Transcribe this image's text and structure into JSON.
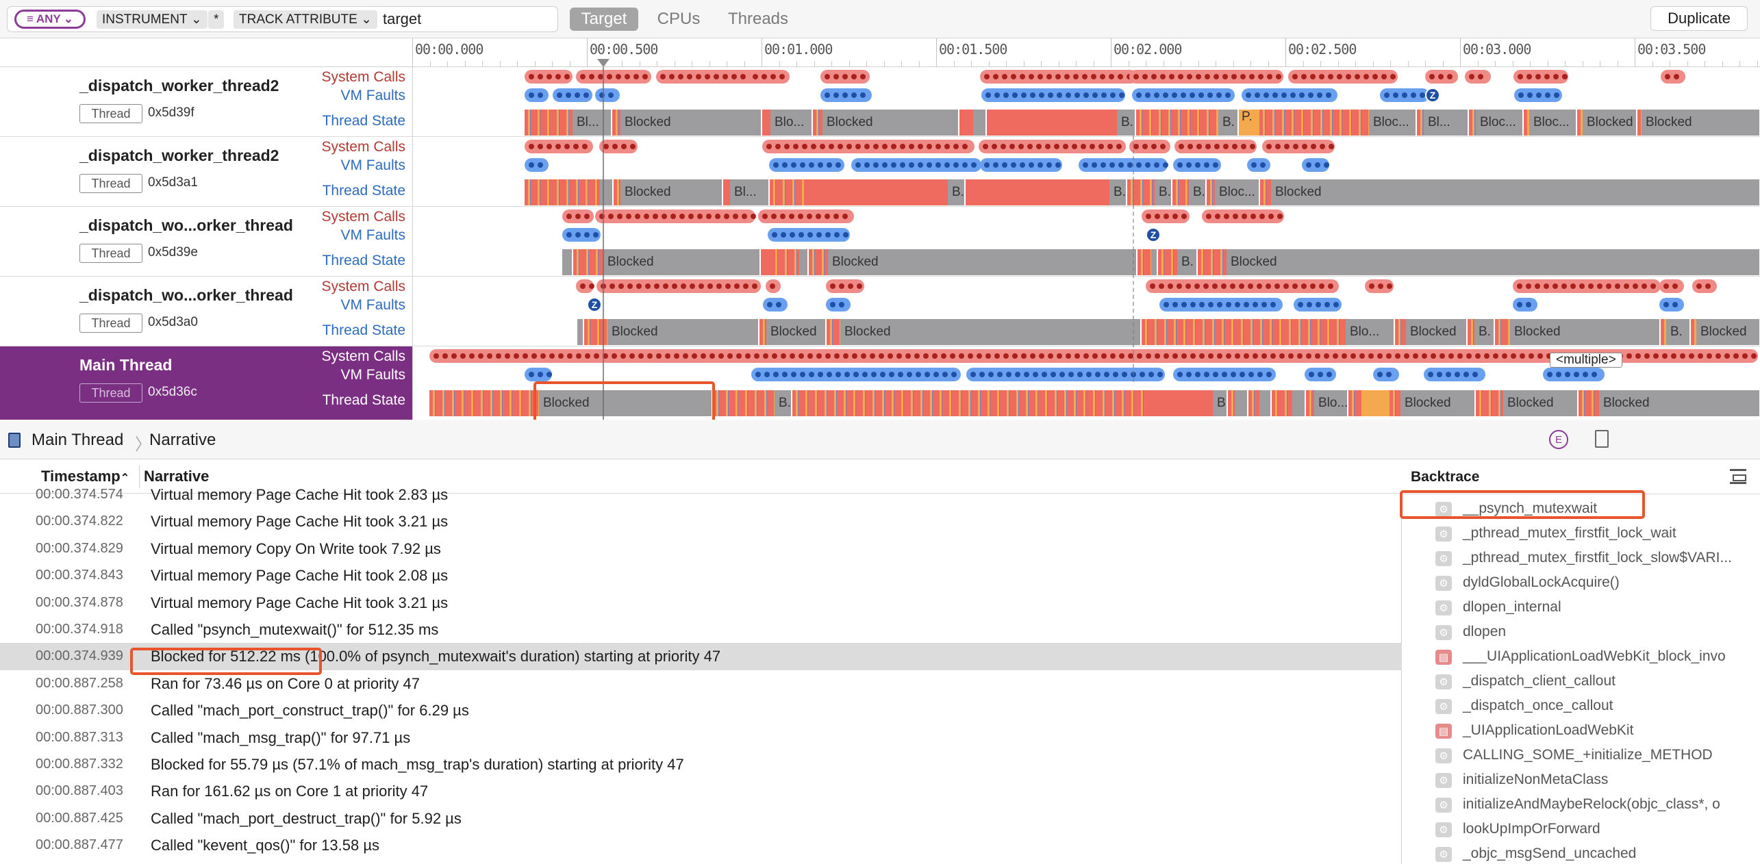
{
  "toolbar": {
    "any_filter": "ANY",
    "tokens": [
      "INSTRUMENT",
      "*",
      "TRACK ATTRIBUTE"
    ],
    "filter_text": "target",
    "scopes": [
      "Target",
      "CPUs",
      "Threads"
    ],
    "active_scope": "Target",
    "duplicate_label": "Duplicate"
  },
  "ruler": {
    "ticks": [
      "00:00.000",
      "00:00.500",
      "00:01.000",
      "00:01.500",
      "00:02.000",
      "00:02.500",
      "00:03.000",
      "00:03.500"
    ]
  },
  "lanes": {
    "system_calls": "System Calls",
    "vm_faults": "VM Faults",
    "thread_state": "Thread State"
  },
  "threads": [
    {
      "name": "_dispatch_worker_thread2",
      "tag": "Thread",
      "id": "0x5d39f"
    },
    {
      "name": "_dispatch_worker_thread2",
      "tag": "Thread",
      "id": "0x5d3a1"
    },
    {
      "name": "_dispatch_wo...orker_thread",
      "tag": "Thread",
      "id": "0x5d39e"
    },
    {
      "name": "_dispatch_wo...orker_thread",
      "tag": "Thread",
      "id": "0x5d3a0"
    },
    {
      "name": "Main Thread",
      "tag": "Thread",
      "id": "0x5d36c"
    }
  ],
  "state_labels": {
    "blocked": "Blocked",
    "bl": "Bl...",
    "blo": "Blo...",
    "bloc": "Bloc...",
    "b": "B.",
    "p": "P.",
    "zombie": "Z",
    "multiple": "<multiple>"
  },
  "breadcrumb": {
    "thread": "Main Thread",
    "view": "Narrative",
    "extended_icon": "E"
  },
  "table": {
    "col_timestamp": "Timestamp",
    "col_narrative": "Narrative",
    "rows": [
      {
        "ts": "00:00.374.574",
        "text": "Virtual memory Page Cache Hit took 2.83 µs"
      },
      {
        "ts": "00:00.374.822",
        "text": "Virtual memory Page Cache Hit took 3.21 µs"
      },
      {
        "ts": "00:00.374.829",
        "text": "Virtual memory Copy On Write took 7.92 µs"
      },
      {
        "ts": "00:00.374.843",
        "text": "Virtual memory Page Cache Hit took 2.08 µs"
      },
      {
        "ts": "00:00.374.878",
        "text": "Virtual memory Page Cache Hit took 3.21 µs"
      },
      {
        "ts": "00:00.374.918",
        "text": "Called \"psynch_mutexwait()\" for 512.35 ms"
      },
      {
        "ts": "00:00.374.939",
        "text": "Blocked for 512.22 ms (100.0% of psynch_mutexwait's duration) starting at priority 47",
        "selected": true
      },
      {
        "ts": "00:00.887.258",
        "text": "Ran for 73.46 µs on Core 0 at priority 47"
      },
      {
        "ts": "00:00.887.300",
        "text": "Called \"mach_port_construct_trap()\" for 6.29 µs"
      },
      {
        "ts": "00:00.887.313",
        "text": "Called \"mach_msg_trap()\" for 97.71 µs"
      },
      {
        "ts": "00:00.887.332",
        "text": "Blocked for 55.79 µs (57.1% of mach_msg_trap's duration) starting at priority 47"
      },
      {
        "ts": "00:00.887.403",
        "text": "Ran for 161.62 µs on Core 1 at priority 47"
      },
      {
        "ts": "00:00.887.425",
        "text": "Called \"mach_port_destruct_trap()\" for 5.92 µs"
      },
      {
        "ts": "00:00.887.477",
        "text": "Called \"kevent_qos()\" for 13.58 µs"
      }
    ]
  },
  "backtrace": {
    "title": "Backtrace",
    "frames": [
      {
        "name": "__psynch_mutexwait",
        "kind": "system"
      },
      {
        "name": "_pthread_mutex_firstfit_lock_wait",
        "kind": "system"
      },
      {
        "name": "_pthread_mutex_firstfit_lock_slow$VARI...",
        "kind": "system"
      },
      {
        "name": "dyldGlobalLockAcquire()",
        "kind": "system"
      },
      {
        "name": "dlopen_internal",
        "kind": "system"
      },
      {
        "name": "dlopen",
        "kind": "system"
      },
      {
        "name": "___UIApplicationLoadWebKit_block_invo",
        "kind": "app"
      },
      {
        "name": "_dispatch_client_callout",
        "kind": "system"
      },
      {
        "name": "_dispatch_once_callout",
        "kind": "system"
      },
      {
        "name": "_UIApplicationLoadWebKit",
        "kind": "app"
      },
      {
        "name": "CALLING_SOME_+initialize_METHOD",
        "kind": "system"
      },
      {
        "name": "initializeNonMetaClass",
        "kind": "system"
      },
      {
        "name": "initializeAndMaybeRelock(objc_class*, o",
        "kind": "system"
      },
      {
        "name": "lookUpImpOrForward",
        "kind": "system"
      },
      {
        "name": "_objc_msgSend_uncached",
        "kind": "system"
      }
    ]
  }
}
